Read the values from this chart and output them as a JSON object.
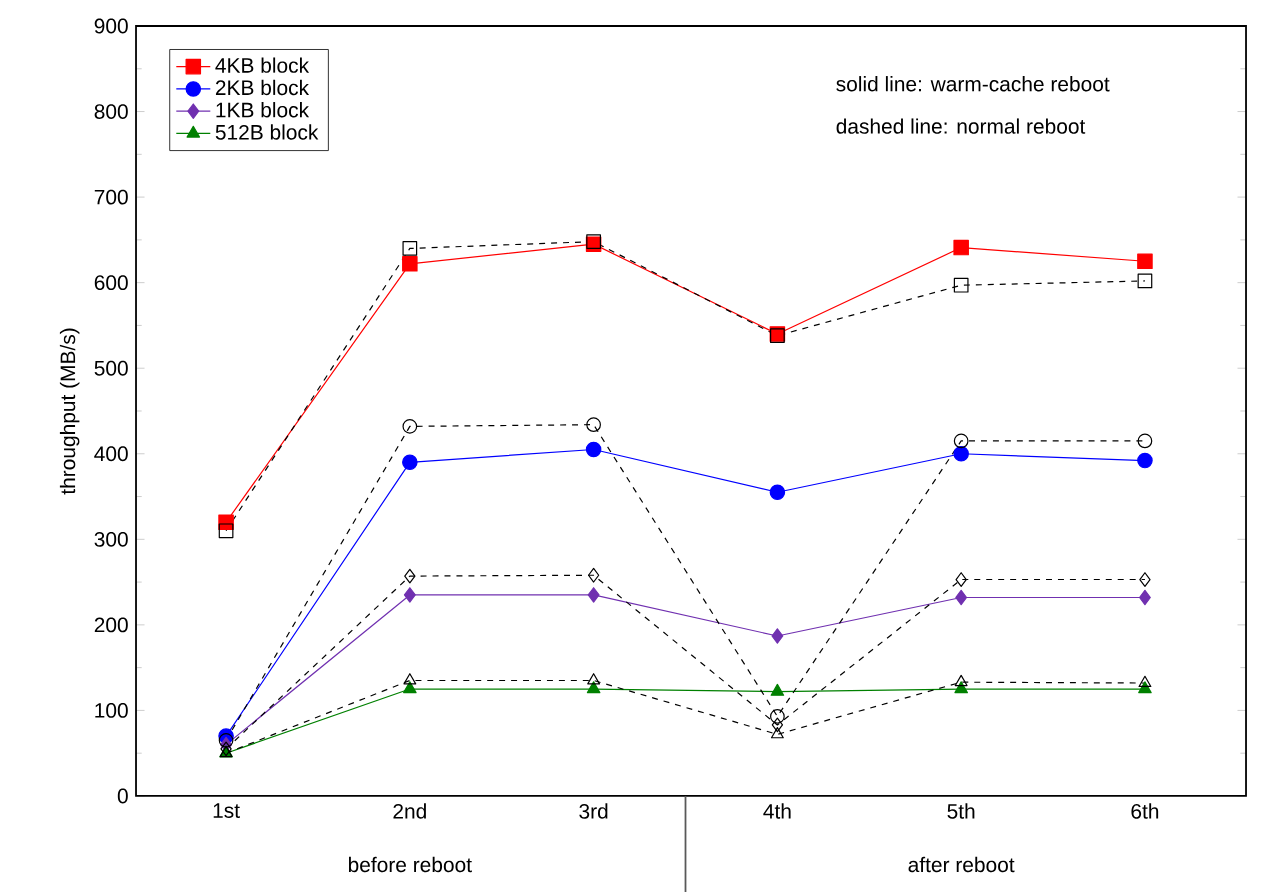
{
  "chart_data": {
    "type": "line",
    "ylabel": "throughput (MB/s)",
    "categories": [
      "1st",
      "2nd",
      "3rd",
      "4th",
      "5th",
      "6th"
    ],
    "ylim": [
      0,
      900
    ],
    "yticks": [
      0,
      100,
      200,
      300,
      400,
      500,
      600,
      700,
      800,
      900
    ],
    "legend": "top left",
    "annotations": [
      "solid line: warm-cache reboot",
      "dashed line: normal reboot",
      "before reboot",
      "after reboot"
    ],
    "series": [
      {
        "name": "4KB block",
        "color": "#ff0000",
        "marker": "square",
        "line_style": "solid",
        "values": [
          320,
          622,
          645,
          540,
          641,
          625
        ]
      },
      {
        "name": "2KB block",
        "color": "#0000ff",
        "marker": "circle",
        "line_style": "solid",
        "values": [
          70,
          390,
          405,
          355,
          400,
          392
        ]
      },
      {
        "name": "1KB block",
        "color": "#7030b0",
        "marker": "diamond",
        "line_style": "solid",
        "values": [
          60,
          235,
          235,
          187,
          232,
          232
        ]
      },
      {
        "name": "512B block",
        "color": "#008000",
        "marker": "triangle",
        "line_style": "solid",
        "values": [
          50,
          125,
          125,
          122,
          125,
          125
        ]
      },
      {
        "color": "#000000",
        "marker": "square",
        "line_style": "dashed",
        "values": [
          310,
          640,
          648,
          538,
          597,
          602
        ]
      },
      {
        "color": "#000000",
        "marker": "circle",
        "line_style": "dashed",
        "values": [
          65,
          432,
          434,
          93,
          415,
          415
        ]
      },
      {
        "color": "#000000",
        "marker": "diamond",
        "line_style": "dashed",
        "values": [
          55,
          257,
          258,
          83,
          253,
          253
        ]
      },
      {
        "color": "#000000",
        "marker": "triangle",
        "line_style": "dashed",
        "values": [
          50,
          135,
          135,
          72,
          133,
          132
        ]
      }
    ]
  }
}
